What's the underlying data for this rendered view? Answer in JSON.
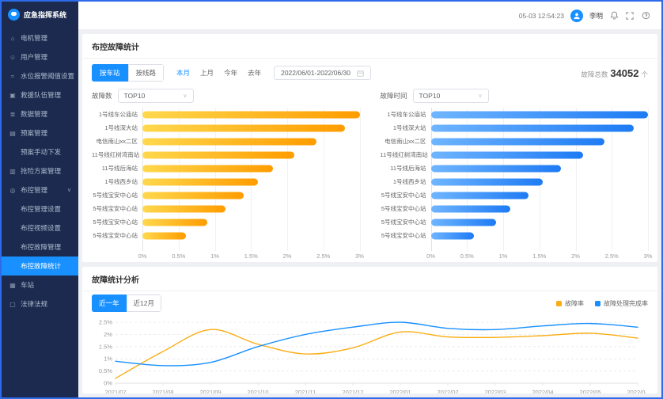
{
  "app": {
    "title": "应急指挥系统"
  },
  "header": {
    "datetime": "05-03 12:54:23",
    "username": "李明"
  },
  "sidebar": {
    "items": [
      {
        "label": "电机管理",
        "icon": "motor-icon",
        "glyph": "⌂"
      },
      {
        "label": "用户管理",
        "icon": "user-management-icon",
        "glyph": "☺"
      },
      {
        "label": "水位报警阈值设置",
        "icon": "water-level-icon",
        "glyph": "≈"
      },
      {
        "label": "救援队伍管理",
        "icon": "rescue-team-icon",
        "glyph": "▣"
      },
      {
        "label": "数据管理",
        "icon": "data-icon",
        "glyph": "≣"
      },
      {
        "label": "预案管理",
        "icon": "plan-icon",
        "glyph": "▤",
        "children": [
          {
            "label": "预案手动下发"
          }
        ]
      },
      {
        "label": "抢险方案管理",
        "icon": "emergency-plan-icon",
        "glyph": "▥"
      },
      {
        "label": "布控管理",
        "icon": "surveillance-icon",
        "glyph": "◎",
        "chevron": "∨",
        "children": [
          {
            "label": "布控管理设置"
          },
          {
            "label": "布控视频设置"
          },
          {
            "label": "布控故障管理"
          },
          {
            "label": "布控故障统计",
            "active": true
          }
        ]
      },
      {
        "label": "车站",
        "icon": "station-icon",
        "glyph": "▦"
      },
      {
        "label": "法律法规",
        "icon": "regulations-icon",
        "glyph": "▢"
      }
    ]
  },
  "section1": {
    "title": "布控故障统计",
    "toggles": [
      {
        "label": "按车站",
        "active": true
      },
      {
        "label": "按线路",
        "active": false
      }
    ],
    "quick_links": [
      {
        "label": "本月",
        "active": true
      },
      {
        "label": "上月",
        "active": false
      },
      {
        "label": "今年",
        "active": false
      },
      {
        "label": "去年",
        "active": false
      }
    ],
    "date_range": "2022/06/01-2022/06/30",
    "total": {
      "label": "故障总数",
      "value": "34052",
      "unit": "个"
    },
    "left_select": {
      "label": "故障数",
      "value": "TOP10"
    },
    "right_select": {
      "label": "故障时间",
      "value": "TOP10"
    }
  },
  "section2": {
    "title": "故障统计分析",
    "tabs": [
      {
        "label": "近一年",
        "active": true
      },
      {
        "label": "近12月",
        "active": false
      }
    ],
    "legend": [
      {
        "label": "故障率",
        "color": "#FAAD14"
      },
      {
        "label": "故障处理完成率",
        "color": "#1890FF"
      }
    ]
  },
  "chart_data": [
    {
      "id": "fault-count-top10",
      "type": "bar",
      "orientation": "horizontal",
      "title": "故障数 TOP10",
      "categories": [
        "1号线车公庙站",
        "1号线深大站",
        "电信南山xx二区",
        "11号线红树湾南站",
        "11号线后海站",
        "1号线西乡站",
        "5号线宝安中心站",
        "5号线宝安中心站",
        "5号线宝安中心站",
        "5号线宝安中心站"
      ],
      "values": [
        3.0,
        2.8,
        2.4,
        2.1,
        1.8,
        1.6,
        1.4,
        1.15,
        0.9,
        0.6
      ],
      "unit": "%",
      "xlim": [
        0,
        3
      ],
      "xticks": [
        "0%",
        "0.5%",
        "1%",
        "1.5%",
        "2%",
        "2.5%",
        "3%"
      ],
      "bar_gradient": [
        "#FFD84D",
        "#FF9C00"
      ]
    },
    {
      "id": "fault-duration-top10",
      "type": "bar",
      "orientation": "horizontal",
      "title": "故障时间 TOP10",
      "categories": [
        "1号线车公庙站",
        "1号线深大站",
        "电信南山xx二区",
        "11号线红树湾南站",
        "11号线后海站",
        "1号线西乡站",
        "5号线宝安中心站",
        "5号线宝安中心站",
        "5号线宝安中心站",
        "5号线宝安中心站"
      ],
      "values": [
        3.0,
        2.8,
        2.4,
        2.1,
        1.8,
        1.55,
        1.35,
        1.1,
        0.9,
        0.6
      ],
      "unit": "%",
      "xlim": [
        0,
        3
      ],
      "xticks": [
        "0%",
        "0.5%",
        "1%",
        "1.5%",
        "2%",
        "2.5%",
        "3%"
      ],
      "bar_gradient": [
        "#6FB5FF",
        "#1E7BF4"
      ]
    },
    {
      "id": "fault-trend",
      "type": "line",
      "title": "故障统计分析",
      "x": [
        "2021/07",
        "2021/08",
        "2021/09",
        "2021/10",
        "2021/11",
        "2021/12",
        "2022/01",
        "2022/02",
        "2022/03",
        "2022/04",
        "2022/05",
        "2022/06"
      ],
      "series": [
        {
          "name": "故障率",
          "color": "#FAAD14",
          "values": [
            0.2,
            1.3,
            2.2,
            1.6,
            1.2,
            1.45,
            2.1,
            1.9,
            1.88,
            1.95,
            2.05,
            1.85
          ]
        },
        {
          "name": "故障处理完成率",
          "color": "#1890FF",
          "values": [
            0.9,
            0.72,
            0.85,
            1.5,
            2.0,
            2.3,
            2.5,
            2.25,
            2.2,
            2.35,
            2.45,
            2.3
          ]
        }
      ],
      "yticks": [
        "0%",
        "0.5%",
        "1%",
        "1.5%",
        "2%",
        "2.5%"
      ],
      "ylim": [
        0,
        2.6
      ],
      "grid": "dashed-horizontal",
      "legend_position": "top-right"
    }
  ]
}
